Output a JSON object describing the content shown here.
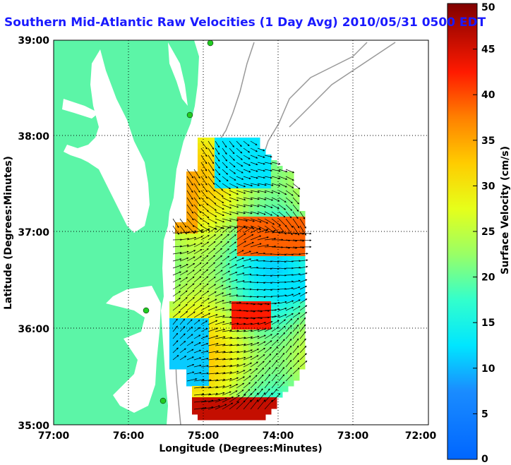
{
  "title": "Southern Mid-Atlantic Raw Velocities (1 Day Avg) 2010/05/31 0500 EDT",
  "x_axis": {
    "label": "Longitude (Degrees:Minutes)",
    "ticks": [
      "77:00",
      "76:00",
      "75:00",
      "74:00",
      "73:00",
      "72:00"
    ]
  },
  "y_axis": {
    "label": "Latitude (Degrees:Minutes)",
    "ticks": [
      "39:00",
      "38:00",
      "37:00",
      "36:00",
      "35:00"
    ]
  },
  "colorbar": {
    "label": "Surface Velocity (cm/s)",
    "ticks": [
      "50",
      "45",
      "40",
      "35",
      "30",
      "25",
      "20",
      "15",
      "10",
      "5",
      "0"
    ],
    "min": 0,
    "max": 50,
    "colormap": "jet"
  },
  "map": {
    "lon_range": [
      -77,
      -72
    ],
    "lat_range": [
      35,
      39
    ],
    "land_color": "#5cf5a7",
    "grid": true,
    "stations": 5
  }
}
